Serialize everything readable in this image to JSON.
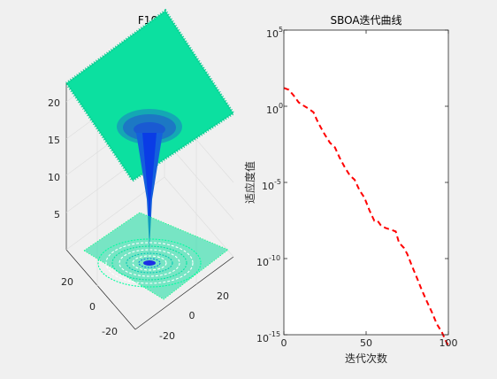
{
  "figure": {
    "background": "#f0f0f0"
  },
  "chart_data": [
    {
      "type": "surface3d",
      "title": "F10",
      "xlabel": "",
      "ylabel": "",
      "zlabel": "",
      "x_ticks": [
        "-20",
        "0",
        "20"
      ],
      "y_ticks": [
        "20",
        "0",
        "-20"
      ],
      "z_ticks": [
        "5",
        "10",
        "15",
        "20"
      ],
      "xlim": [
        -32,
        32
      ],
      "ylim": [
        -32,
        32
      ],
      "zlim": [
        0,
        22
      ],
      "surface": "Ackley function (F10)",
      "colormap": "winter",
      "contour_colors": [
        "#0000ff",
        "#00ff80"
      ]
    },
    {
      "type": "line",
      "title": "SBOA迭代曲线",
      "xlabel": "迭代次数",
      "ylabel": "适应度值",
      "xlim": [
        0,
        100
      ],
      "ylim": [
        1e-15,
        100000.0
      ],
      "yscale": "log",
      "x_ticks": [
        "0",
        "50",
        "100"
      ],
      "y_ticks": [
        {
          "base": "10",
          "exp": "5"
        },
        {
          "base": "10",
          "exp": "0"
        },
        {
          "base": "10",
          "exp": "-5"
        },
        {
          "base": "10",
          "exp": "-10"
        },
        {
          "base": "10",
          "exp": "-15"
        }
      ],
      "series": [
        {
          "color": "#ff0000",
          "style": "dashed",
          "x": [
            0,
            3,
            6,
            9,
            12,
            15,
            18,
            20,
            22,
            25,
            28,
            31,
            34,
            37,
            40,
            43,
            46,
            49,
            52,
            55,
            57,
            59,
            62,
            65,
            68,
            70,
            73,
            75,
            78,
            81,
            84,
            87,
            90,
            93,
            96,
            99,
            100
          ],
          "y": [
            16,
            12,
            5,
            1.8,
            1.1,
            0.7,
            0.4,
            0.13,
            0.05,
            0.013,
            0.004,
            0.002,
            0.0004,
            0.0001,
            3e-05,
            1.5e-05,
            3e-06,
            1e-06,
            1.5e-07,
            3e-08,
            3e-08,
            1.5e-08,
            1e-08,
            8e-09,
            6e-09,
            1.1e-09,
            5e-10,
            2e-10,
            3e-11,
            5e-12,
            8e-13,
            1.5e-13,
            3e-14,
            5e-15,
            1.5e-15,
            3e-16,
            2e-16
          ]
        }
      ]
    }
  ]
}
